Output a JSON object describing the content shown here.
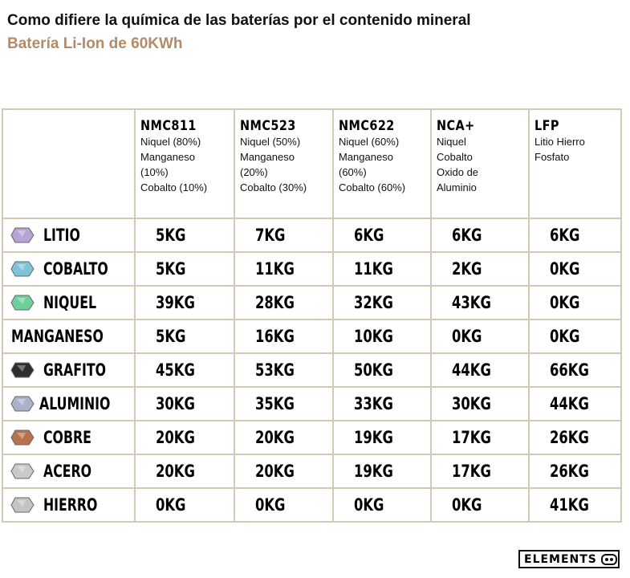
{
  "header": {
    "title": "Como difiere la química de las baterías por el contenido mineral",
    "subtitle": "Batería Li-Ion de 60KWh"
  },
  "table": {
    "columns": [
      {
        "name": "NMC811",
        "lines": [
          "Niquel (80%)",
          "Manganeso",
          "(10%)",
          "Cobalto (10%)"
        ]
      },
      {
        "name": "NMC523",
        "lines": [
          "Niquel (50%)",
          "Manganeso",
          "(20%)",
          "Cobalto (30%)"
        ]
      },
      {
        "name": "NMC622",
        "lines": [
          "Niquel (60%)",
          "Manganeso",
          "(60%)",
          "Cobalto (60%)"
        ]
      },
      {
        "name": "NCA+",
        "lines": [
          "Niquel",
          "Cobalto",
          "Oxido de",
          "Aluminio"
        ]
      },
      {
        "name": "LFP",
        "lines": [
          "Litio Hierro",
          "Fosfato"
        ]
      }
    ],
    "rows": [
      {
        "mineral": "LITIO",
        "values": [
          "5KG",
          "7KG",
          "6KG",
          "6KG",
          "6KG"
        ]
      },
      {
        "mineral": "COBALTO",
        "values": [
          "5KG",
          "11KG",
          "11KG",
          "2KG",
          "0KG"
        ]
      },
      {
        "mineral": "NIQUEL",
        "values": [
          "39KG",
          "28KG",
          "32KG",
          "43KG",
          "0KG"
        ]
      },
      {
        "mineral": "MANGANESO",
        "values": [
          "5KG",
          "16KG",
          "10KG",
          "0KG",
          "0KG"
        ]
      },
      {
        "mineral": "GRAFITO",
        "values": [
          "45KG",
          "53KG",
          "50KG",
          "44KG",
          "66KG"
        ]
      },
      {
        "mineral": "ALUMINIO",
        "values": [
          "30KG",
          "35KG",
          "33KG",
          "30KG",
          "44KG"
        ]
      },
      {
        "mineral": "COBRE",
        "values": [
          "20KG",
          "20KG",
          "19KG",
          "17KG",
          "26KG"
        ]
      },
      {
        "mineral": "ACERO",
        "values": [
          "20KG",
          "20KG",
          "19KG",
          "17KG",
          "26KG"
        ]
      },
      {
        "mineral": "HIERRO",
        "values": [
          "0KG",
          "0KG",
          "0KG",
          "0KG",
          "41KG"
        ]
      }
    ]
  },
  "footer": {
    "logo": "ELEMENTS"
  }
}
